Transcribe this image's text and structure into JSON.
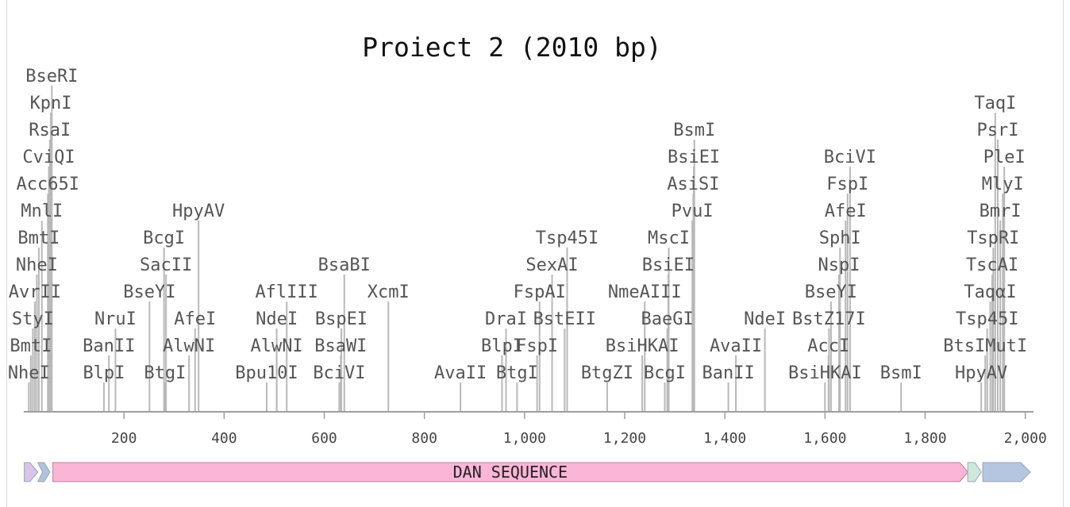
{
  "title": "Proiect 2 (2010 bp)",
  "sequence_length_bp": 2010,
  "axis": {
    "ticks": [
      200,
      400,
      600,
      800,
      1000,
      1200,
      1400,
      1600,
      1800,
      2000
    ],
    "tick_labels": [
      "200",
      "400",
      "600",
      "800",
      "1,000",
      "1,200",
      "1,400",
      "1,600",
      "1,800",
      "2,000"
    ]
  },
  "colors": {
    "axis": "#9e9e9e",
    "cut_line": "#b8b8b8",
    "label_text": "#555555",
    "main_feature": "#fbb6d7",
    "main_feature_border": "#c07a98",
    "left_feature": "#d9c5ea",
    "left_arrow": "#aec4dc",
    "right_small_feature": "#cfe8dc",
    "right_feature": "#b5c6e0"
  },
  "sites": [
    {
      "name": "NheI",
      "pos": 10,
      "tier": 0
    },
    {
      "name": "BmtI",
      "pos": 14,
      "tier": 1
    },
    {
      "name": "StyI",
      "pos": 18,
      "tier": 2
    },
    {
      "name": "AvrII",
      "pos": 22,
      "tier": 3
    },
    {
      "name": "NheI",
      "pos": 26,
      "tier": 4
    },
    {
      "name": "BmtI",
      "pos": 30,
      "tier": 5
    },
    {
      "name": "MnlI",
      "pos": 36,
      "tier": 6
    },
    {
      "name": "Acc65I",
      "pos": 48,
      "tier": 7
    },
    {
      "name": "CviQI",
      "pos": 50,
      "tier": 8
    },
    {
      "name": "RsaI",
      "pos": 52,
      "tier": 9
    },
    {
      "name": "KpnI",
      "pos": 54,
      "tier": 10
    },
    {
      "name": "BseRI",
      "pos": 56,
      "tier": 11
    },
    {
      "name": "BlpI",
      "pos": 160,
      "tier": 0
    },
    {
      "name": "BanII",
      "pos": 170,
      "tier": 1
    },
    {
      "name": "NruI",
      "pos": 183,
      "tier": 2
    },
    {
      "name": "BseYI",
      "pos": 251,
      "tier": 3
    },
    {
      "name": "BtgI",
      "pos": 282,
      "tier": 0
    },
    {
      "name": "SacII",
      "pos": 284,
      "tier": 4
    },
    {
      "name": "BcgI",
      "pos": 280,
      "tier": 5
    },
    {
      "name": "AlwNI",
      "pos": 330,
      "tier": 1
    },
    {
      "name": "AfeI",
      "pos": 342,
      "tier": 2
    },
    {
      "name": "HpyAV",
      "pos": 349,
      "tier": 6
    },
    {
      "name": "Bpu10I",
      "pos": 485,
      "tier": 0
    },
    {
      "name": "AlwNI",
      "pos": 505,
      "tier": 1
    },
    {
      "name": "NdeI",
      "pos": 505,
      "tier": 2
    },
    {
      "name": "AflIII",
      "pos": 525,
      "tier": 3
    },
    {
      "name": "BciVI",
      "pos": 630,
      "tier": 0
    },
    {
      "name": "BsaWI",
      "pos": 633,
      "tier": 1
    },
    {
      "name": "BspEI",
      "pos": 634,
      "tier": 2
    },
    {
      "name": "BsaBI",
      "pos": 640,
      "tier": 4
    },
    {
      "name": "XcmI",
      "pos": 728,
      "tier": 3
    },
    {
      "name": "AvaII",
      "pos": 872,
      "tier": 0
    },
    {
      "name": "BlpI",
      "pos": 955,
      "tier": 1
    },
    {
      "name": "DraI",
      "pos": 963,
      "tier": 2
    },
    {
      "name": "BtgI",
      "pos": 985,
      "tier": 0
    },
    {
      "name": "FspI",
      "pos": 1025,
      "tier": 1
    },
    {
      "name": "FspAI",
      "pos": 1030,
      "tier": 3
    },
    {
      "name": "SexAI",
      "pos": 1055,
      "tier": 4
    },
    {
      "name": "BstEII",
      "pos": 1080,
      "tier": 2
    },
    {
      "name": "Tsp45I",
      "pos": 1085,
      "tier": 5
    },
    {
      "name": "BtgZI",
      "pos": 1165,
      "tier": 0
    },
    {
      "name": "BsiHKAI",
      "pos": 1235,
      "tier": 1
    },
    {
      "name": "NmeAIII",
      "pos": 1240,
      "tier": 3
    },
    {
      "name": "BcgI",
      "pos": 1280,
      "tier": 0
    },
    {
      "name": "BaeGI",
      "pos": 1285,
      "tier": 2
    },
    {
      "name": "BsiEI",
      "pos": 1287,
      "tier": 4
    },
    {
      "name": "MscI",
      "pos": 1288,
      "tier": 5
    },
    {
      "name": "PvuI",
      "pos": 1335,
      "tier": 6
    },
    {
      "name": "AsiSI",
      "pos": 1337,
      "tier": 7
    },
    {
      "name": "BsiEI",
      "pos": 1338,
      "tier": 8
    },
    {
      "name": "BsmI",
      "pos": 1339,
      "tier": 9
    },
    {
      "name": "BanII",
      "pos": 1407,
      "tier": 0
    },
    {
      "name": "AvaII",
      "pos": 1422,
      "tier": 1
    },
    {
      "name": "NdeI",
      "pos": 1480,
      "tier": 2
    },
    {
      "name": "BsiHKAI",
      "pos": 1600,
      "tier": 0
    },
    {
      "name": "AccI",
      "pos": 1607,
      "tier": 1
    },
    {
      "name": "BstZ17I",
      "pos": 1608,
      "tier": 2
    },
    {
      "name": "BseYI",
      "pos": 1612,
      "tier": 3
    },
    {
      "name": "NspI",
      "pos": 1628,
      "tier": 4
    },
    {
      "name": "SphI",
      "pos": 1630,
      "tier": 5
    },
    {
      "name": "AfeI",
      "pos": 1641,
      "tier": 6
    },
    {
      "name": "FspI",
      "pos": 1645,
      "tier": 7
    },
    {
      "name": "BciVI",
      "pos": 1650,
      "tier": 8
    },
    {
      "name": "BsmI",
      "pos": 1752,
      "tier": 0
    },
    {
      "name": "HpyAV",
      "pos": 1912,
      "tier": 0
    },
    {
      "name": "BtsIMutI",
      "pos": 1920,
      "tier": 1
    },
    {
      "name": "Tsp45I",
      "pos": 1924,
      "tier": 2
    },
    {
      "name": "TaqαI",
      "pos": 1930,
      "tier": 3
    },
    {
      "name": "TscAI",
      "pos": 1934,
      "tier": 4
    },
    {
      "name": "TspRI",
      "pos": 1936,
      "tier": 5
    },
    {
      "name": "BmrI",
      "pos": 1950,
      "tier": 6
    },
    {
      "name": "MlyI",
      "pos": 1955,
      "tier": 7
    },
    {
      "name": "PleI",
      "pos": 1958,
      "tier": 8
    },
    {
      "name": "PsrI",
      "pos": 1945,
      "tier": 9
    },
    {
      "name": "TaqI",
      "pos": 1940,
      "tier": 10
    }
  ],
  "features": [
    {
      "name": "",
      "start": 1,
      "end": 28,
      "kind": "left-small",
      "color": "#d9c5ea"
    },
    {
      "name": "",
      "start": 28,
      "end": 52,
      "kind": "left-arrow",
      "color": "#aec4dc"
    },
    {
      "name": "DAN SEQUENCE",
      "start": 58,
      "end": 1885,
      "kind": "main",
      "color": "#fbb6d7"
    },
    {
      "name": "",
      "start": 1885,
      "end": 1912,
      "kind": "right-small",
      "color": "#cfe8dc"
    },
    {
      "name": "",
      "start": 1915,
      "end": 2010,
      "kind": "right-arrow",
      "color": "#b5c6e0"
    }
  ]
}
